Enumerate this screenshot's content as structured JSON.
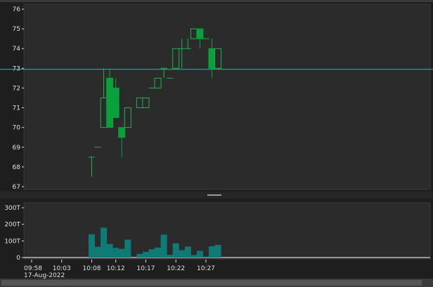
{
  "colors": {
    "background": "#1e1e1e",
    "panel": "#2b2b2b",
    "border": "#3a3a3a",
    "axis_text": "#e0e0e0",
    "up": "#22b14c",
    "down": "#0aa03c",
    "reference_line": "#2ab5b5",
    "volume": "#0f7b77"
  },
  "chart_data": [
    {
      "type": "candlestick",
      "title": "",
      "ylim": [
        67,
        76
      ],
      "y_ticks": [
        67,
        68,
        69,
        70,
        71,
        72,
        73,
        74,
        75,
        76
      ],
      "reference_line": 72.95,
      "grid": false,
      "x_ticks": [
        {
          "index": 0,
          "label": "09:58",
          "sublabel": "17-Aug-2022"
        },
        {
          "index": 5,
          "label": "10:03",
          "sublabel": ""
        },
        {
          "index": 10,
          "label": "10:08",
          "sublabel": ""
        },
        {
          "index": 14,
          "label": "10:12",
          "sublabel": ""
        },
        {
          "index": 19,
          "label": "10:17",
          "sublabel": ""
        },
        {
          "index": 24,
          "label": "10:22",
          "sublabel": ""
        },
        {
          "index": 29,
          "label": "10:27",
          "sublabel": ""
        }
      ],
      "candles": [
        {
          "time": "10:08",
          "index": 10,
          "open": 68.5,
          "high": 68.5,
          "low": 67.5,
          "close": 68.5
        },
        {
          "time": "10:09",
          "index": 11,
          "open": 69.0,
          "high": 69.0,
          "low": 69.0,
          "close": 69.0
        },
        {
          "time": "10:10",
          "index": 12,
          "open": 70.0,
          "high": 73.0,
          "low": 70.0,
          "close": 71.5
        },
        {
          "time": "10:11",
          "index": 13,
          "open": 72.5,
          "high": 73.0,
          "low": 70.0,
          "close": 70.0
        },
        {
          "time": "10:12",
          "index": 14,
          "open": 72.0,
          "high": 72.5,
          "low": 70.5,
          "close": 70.5
        },
        {
          "time": "10:13",
          "index": 15,
          "open": 70.0,
          "high": 70.0,
          "low": 68.5,
          "close": 69.5
        },
        {
          "time": "10:14",
          "index": 16,
          "open": 70.0,
          "high": 71.0,
          "low": 70.0,
          "close": 71.0
        },
        {
          "time": "10:16",
          "index": 18,
          "open": 71.0,
          "high": 71.5,
          "low": 71.0,
          "close": 71.5
        },
        {
          "time": "10:17",
          "index": 19,
          "open": 71.0,
          "high": 71.5,
          "low": 71.0,
          "close": 71.5
        },
        {
          "time": "10:18",
          "index": 20,
          "open": 72.0,
          "high": 72.0,
          "low": 72.0,
          "close": 72.0
        },
        {
          "time": "10:19",
          "index": 21,
          "open": 72.0,
          "high": 72.5,
          "low": 72.0,
          "close": 72.5
        },
        {
          "time": "10:20",
          "index": 22,
          "open": 73.0,
          "high": 73.0,
          "low": 72.5,
          "close": 73.0
        },
        {
          "time": "10:21",
          "index": 23,
          "open": 72.5,
          "high": 72.5,
          "low": 72.5,
          "close": 72.5
        },
        {
          "time": "10:22",
          "index": 24,
          "open": 73.0,
          "high": 74.0,
          "low": 73.0,
          "close": 74.0
        },
        {
          "time": "10:23",
          "index": 25,
          "open": 74.0,
          "high": 74.5,
          "low": 73.0,
          "close": 74.0
        },
        {
          "time": "10:24",
          "index": 26,
          "open": 74.0,
          "high": 74.5,
          "low": 74.0,
          "close": 74.0
        },
        {
          "time": "10:25",
          "index": 27,
          "open": 74.5,
          "high": 75.0,
          "low": 74.5,
          "close": 75.0
        },
        {
          "time": "10:26",
          "index": 28,
          "open": 75.0,
          "high": 75.0,
          "low": 74.0,
          "close": 74.5
        },
        {
          "time": "10:27",
          "index": 29,
          "open": 74.5,
          "high": 74.5,
          "low": 74.5,
          "close": 74.5
        },
        {
          "time": "10:28",
          "index": 30,
          "open": 74.0,
          "high": 74.5,
          "low": 72.5,
          "close": 73.0
        },
        {
          "time": "10:29",
          "index": 31,
          "open": 73.0,
          "high": 74.0,
          "low": 73.0,
          "close": 74.0
        }
      ]
    },
    {
      "type": "bar",
      "title": "",
      "ylim": [
        0,
        300000
      ],
      "y_ticks": [
        {
          "value": 0,
          "label": "0"
        },
        {
          "value": 100000,
          "label": "100T"
        },
        {
          "value": 200000,
          "label": "200T"
        },
        {
          "value": 300000,
          "label": "300T"
        }
      ],
      "volume": [
        {
          "index": 10,
          "value": 140000
        },
        {
          "index": 11,
          "value": 65000
        },
        {
          "index": 12,
          "value": 180000
        },
        {
          "index": 13,
          "value": 82000
        },
        {
          "index": 14,
          "value": 58000
        },
        {
          "index": 15,
          "value": 52000
        },
        {
          "index": 16,
          "value": 108000
        },
        {
          "index": 18,
          "value": 22000
        },
        {
          "index": 19,
          "value": 34000
        },
        {
          "index": 20,
          "value": 50000
        },
        {
          "index": 21,
          "value": 60000
        },
        {
          "index": 22,
          "value": 138000
        },
        {
          "index": 23,
          "value": 16000
        },
        {
          "index": 24,
          "value": 85000
        },
        {
          "index": 25,
          "value": 44000
        },
        {
          "index": 26,
          "value": 66000
        },
        {
          "index": 27,
          "value": 15000
        },
        {
          "index": 28,
          "value": 40000
        },
        {
          "index": 29,
          "value": 6000
        },
        {
          "index": 30,
          "value": 68000
        },
        {
          "index": 31,
          "value": 76000
        }
      ]
    }
  ]
}
